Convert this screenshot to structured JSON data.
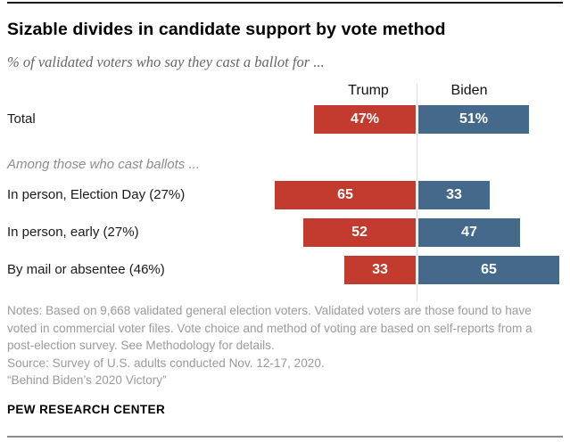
{
  "header": {
    "title": "Sizable divides in candidate support by vote method",
    "subtitle": "% of validated voters who say they cast a ballot for ..."
  },
  "chart_data": {
    "type": "bar",
    "variant": "paired-horizontal-diverging",
    "column_headers": [
      "Trump",
      "Biden"
    ],
    "colors": {
      "trump": "#c23b2e",
      "biden": "#45698a"
    },
    "x_unit": "percent of validated voters",
    "xlim_each_side": [
      0,
      65
    ],
    "rows": [
      {
        "label": "Total",
        "trump": 47,
        "biden": 51,
        "trump_label": "47%",
        "biden_label": "51%"
      },
      {
        "label": "In person, Election Day (27%)",
        "trump": 65,
        "biden": 33,
        "trump_label": "65",
        "biden_label": "33"
      },
      {
        "label": "In person, early (27%)",
        "trump": 52,
        "biden": 47,
        "trump_label": "52",
        "biden_label": "47"
      },
      {
        "label": "By mail or absentee (46%)",
        "trump": 33,
        "biden": 65,
        "trump_label": "33",
        "biden_label": "65"
      }
    ],
    "section_note": "Among those who cast ballots ...",
    "section_note_after_row": 0
  },
  "footer": {
    "notes": "Notes: Based on 9,668 validated general election voters. Validated voters are those found to have voted in commercial voter files. Vote choice and method of voting are based on self-reports from a post-election survey. See Methodology for details.",
    "source": "Source: Survey of U.S. adults conducted Nov. 12-17, 2020.",
    "quote": "“Behind Biden’s 2020 Victory”",
    "brand": "PEW RESEARCH CENTER"
  }
}
